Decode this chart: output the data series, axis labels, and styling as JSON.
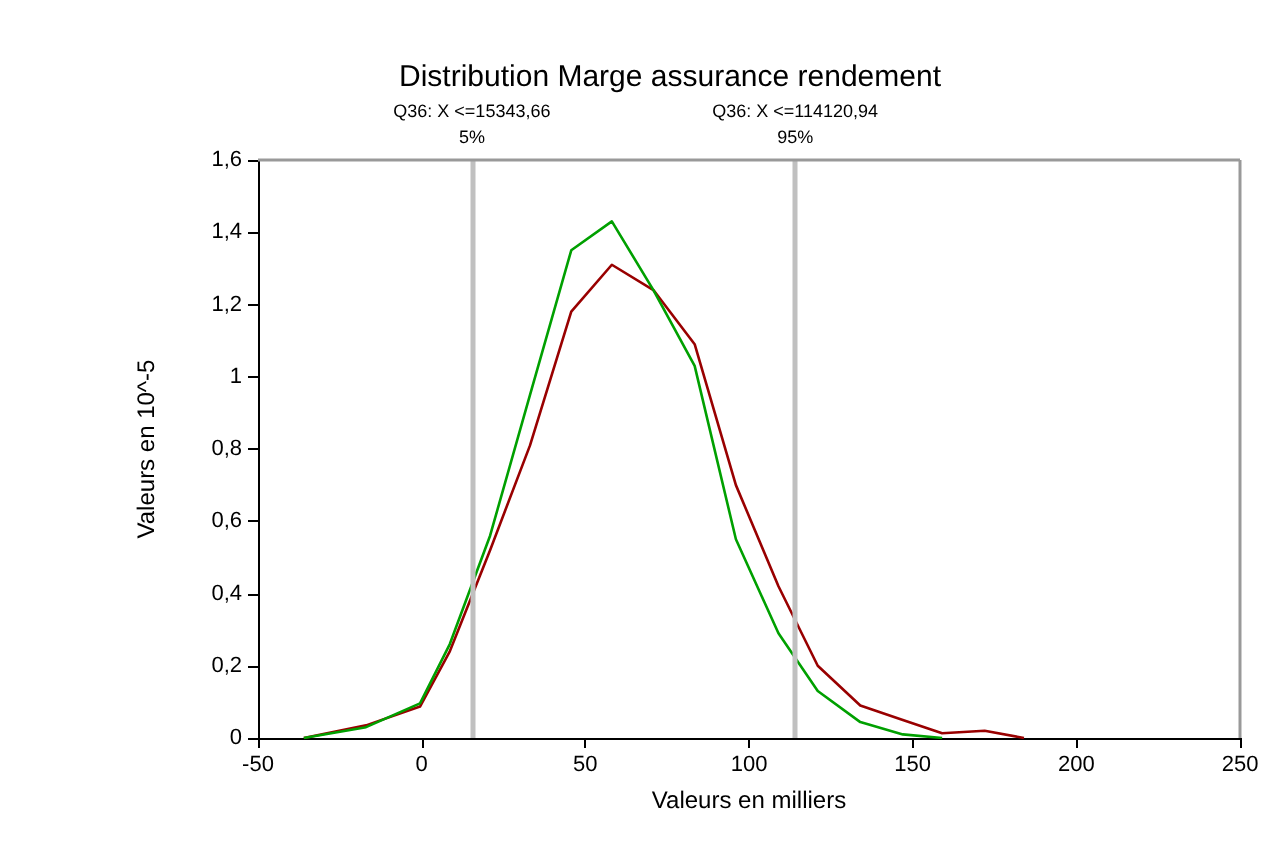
{
  "chart_data": {
    "type": "line",
    "title": "Distribution Marge assurance rendement",
    "xlabel": "Valeurs en milliers",
    "ylabel": "Valeurs en 10^-5",
    "x": [
      -36,
      -17,
      -0.5,
      8.6,
      20.9,
      33.1,
      45.7,
      58.1,
      70.8,
      83.4,
      96,
      109,
      121,
      134,
      147,
      159,
      172,
      184
    ],
    "series": [
      {
        "color": "#990000",
        "values": [
          0,
          0.035,
          0.087,
          0.24,
          0.52,
          0.81,
          1.18,
          1.31,
          1.24,
          1.09,
          0.7,
          0.42,
          0.2,
          0.09,
          0.05,
          0.013,
          0.02,
          0
        ]
      },
      {
        "color": "#00a000",
        "values": [
          0,
          0.03,
          0.096,
          0.26,
          0.56,
          0.95,
          1.35,
          1.43,
          1.24,
          1.03,
          0.55,
          0.29,
          0.13,
          0.044,
          0.01,
          0,
          null,
          null
        ]
      }
    ],
    "xlim": [
      -50,
      250
    ],
    "xticks": [
      -50,
      0,
      50,
      100,
      150,
      200,
      250
    ],
    "ylim": [
      0,
      1.6
    ],
    "yticks": [
      0,
      {
        "value": 0.2,
        "label": "0,2"
      },
      {
        "value": 0.4,
        "label": "0,4"
      },
      {
        "value": 0.6,
        "label": "0,6"
      },
      {
        "value": 0.8,
        "label": "0,8"
      },
      1,
      {
        "value": 1.2,
        "label": "1,2"
      },
      {
        "value": 1.4,
        "label": "1,4"
      },
      {
        "value": 1.6,
        "label": "1,6"
      }
    ],
    "ref_lines": [
      {
        "axis": "x",
        "value": 15.34366,
        "label": "Q36: X <=15343,66\n5%",
        "color": "#c0c0c0"
      },
      {
        "axis": "x",
        "value": 114.12094,
        "label": "Q36: X <=114120,94\n95%",
        "color": "#c0c0c0"
      }
    ],
    "grid": false,
    "marker": "none",
    "line_style": "solid"
  }
}
